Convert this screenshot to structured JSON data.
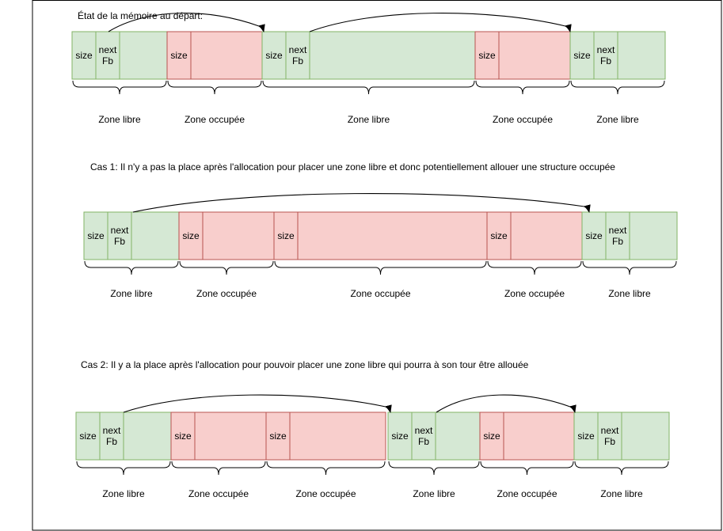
{
  "labels": {
    "size": "size",
    "next": "next",
    "fb": "Fb",
    "free": "Zone libre",
    "occupied": "Zone occupée"
  },
  "sections": [
    {
      "id": "depart",
      "title": "État de la mémoire au départ:",
      "zones": [
        "free",
        "occupied",
        "free",
        "occupied",
        "free"
      ],
      "links": [
        [
          0,
          2
        ],
        [
          2,
          4
        ]
      ]
    },
    {
      "id": "cas1",
      "title": "Cas 1: Il n'y a pas la place après l'allocation pour placer une zone libre et donc potentiellement allouer une structure occupée",
      "zones": [
        "free",
        "occupied",
        "occupied",
        "occupied",
        "free"
      ],
      "links": [
        [
          0,
          4
        ]
      ]
    },
    {
      "id": "cas2",
      "title": "Cas 2: Il y a la place après l'allocation pour pouvoir placer une zone libre qui pourra à son tour être allouée",
      "zones": [
        "free",
        "occupied",
        "occupied",
        "free",
        "occupied",
        "free"
      ],
      "links": [
        [
          0,
          3
        ],
        [
          3,
          5
        ]
      ]
    }
  ]
}
